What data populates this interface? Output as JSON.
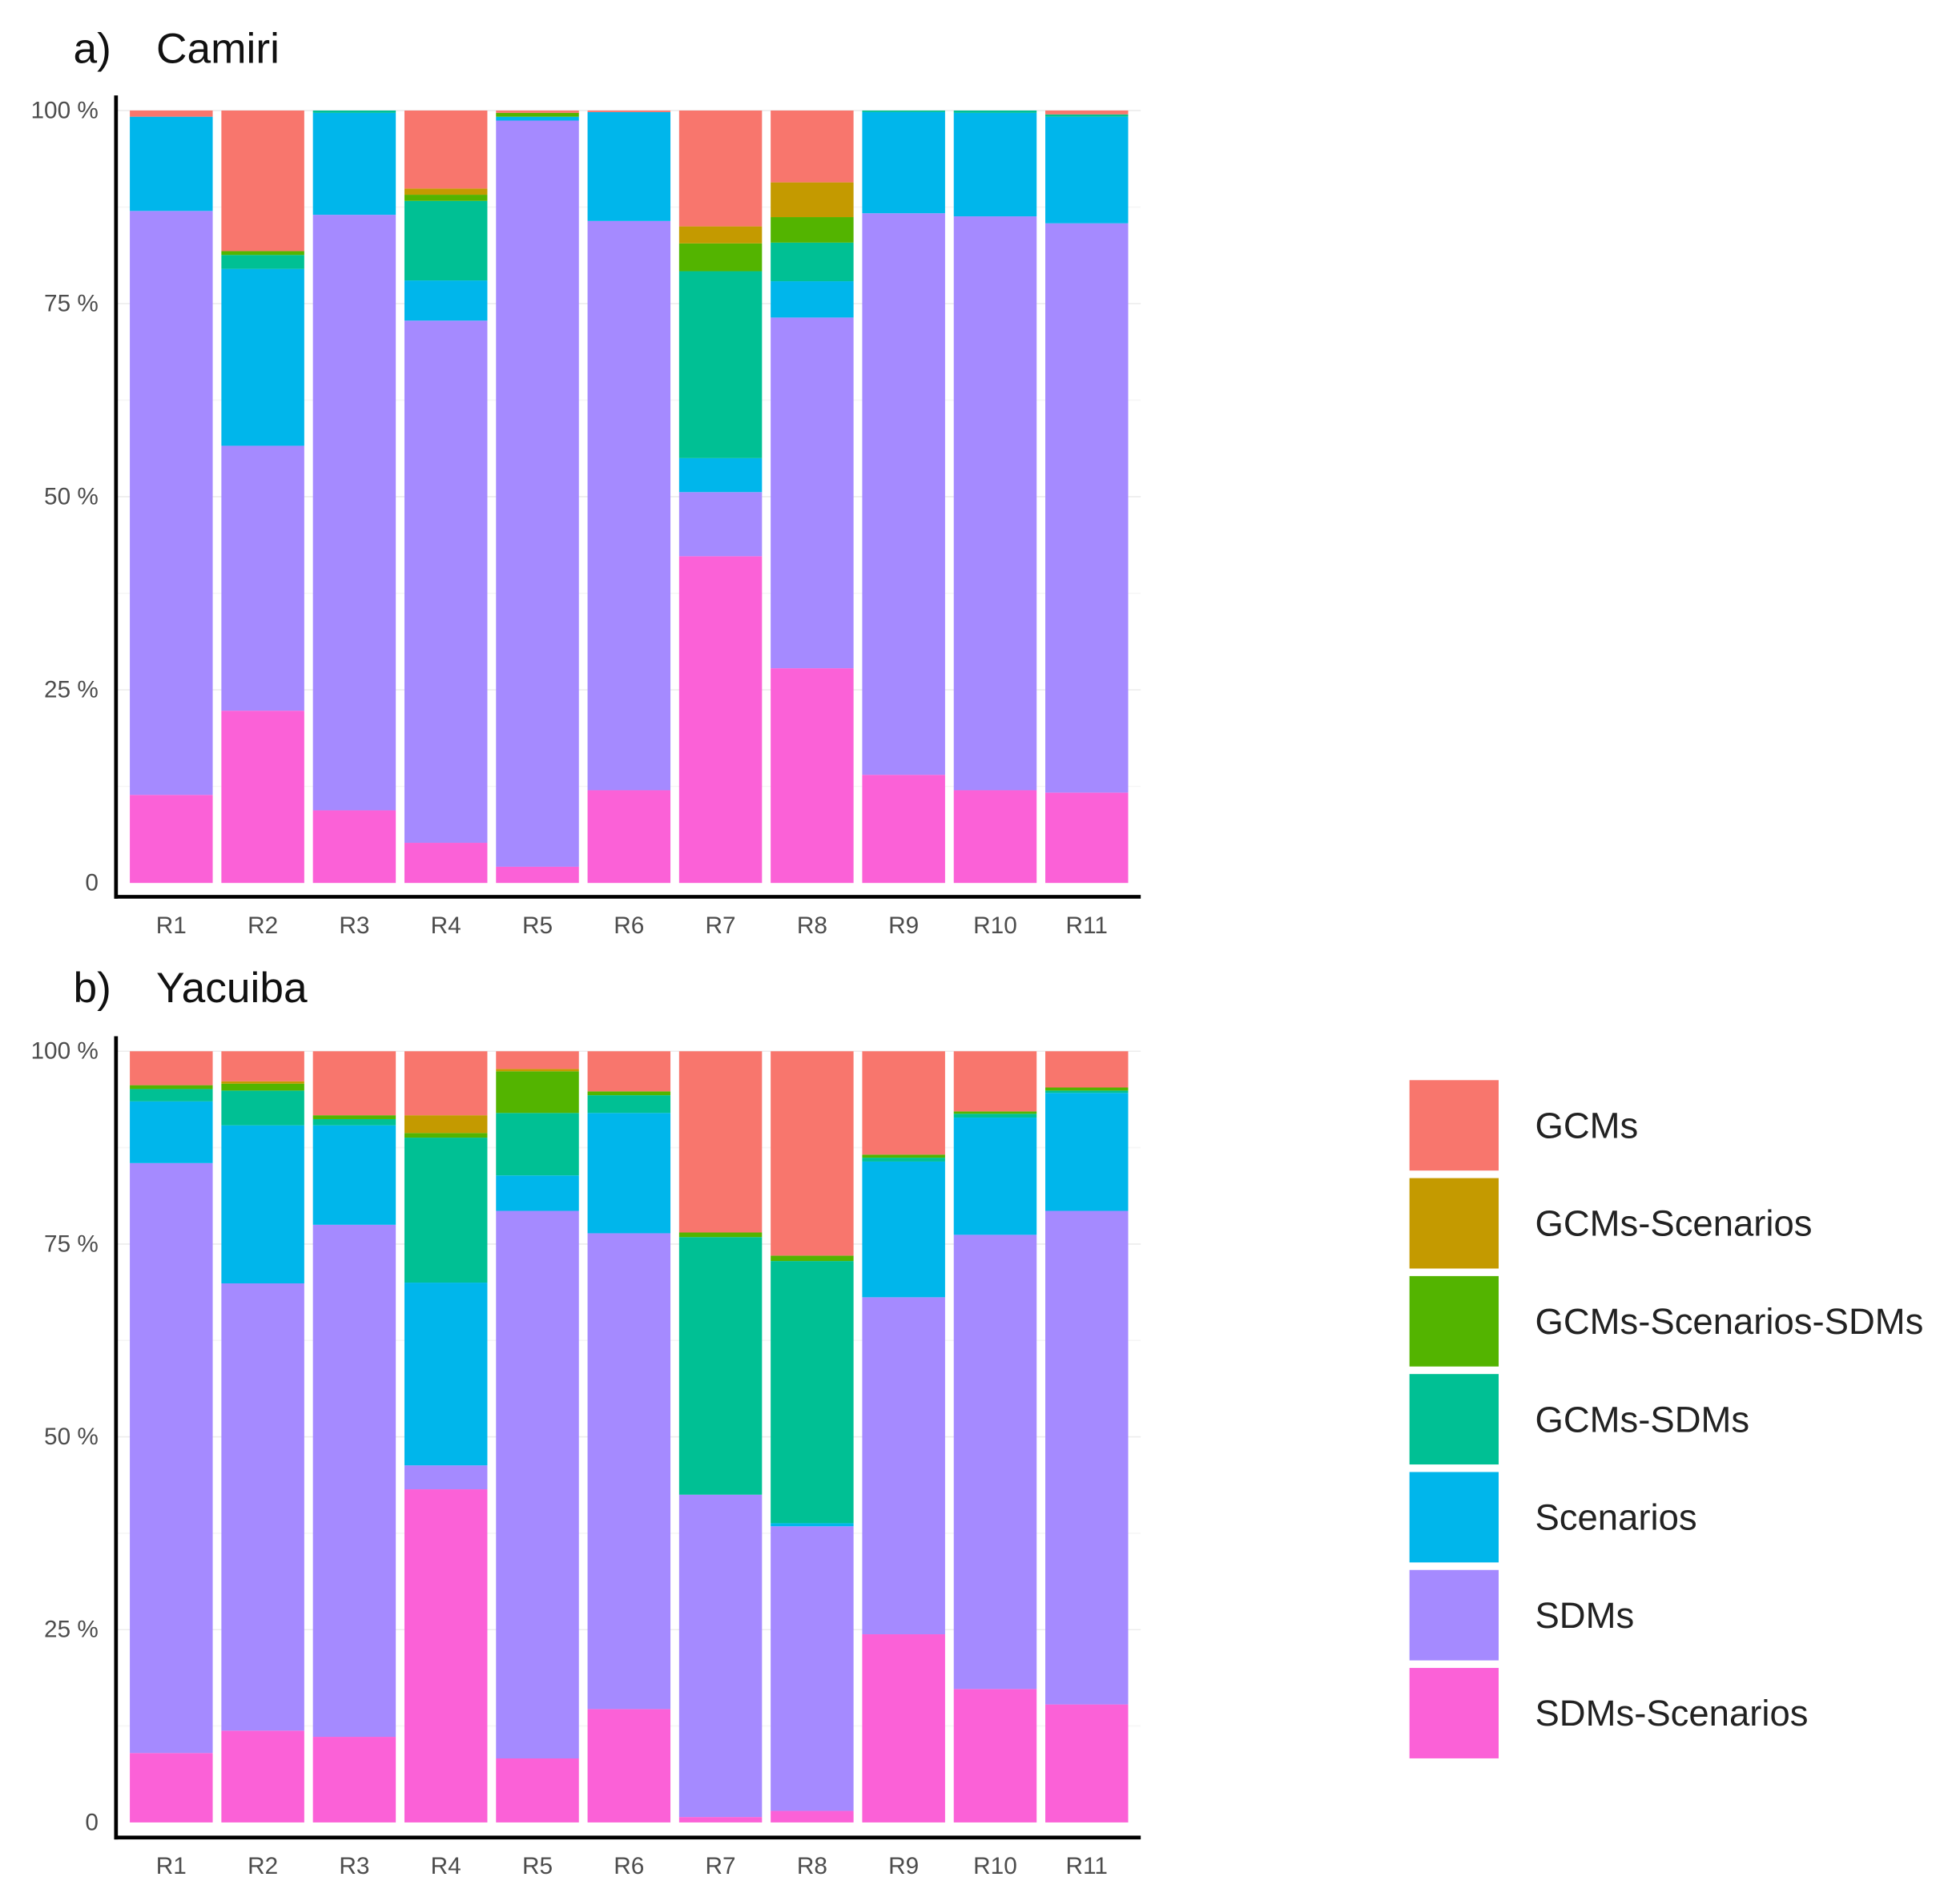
{
  "chart_data": [
    {
      "type": "bar",
      "stacked": true,
      "panel_label": "a)",
      "title": "Camiri",
      "xlabel": "",
      "ylabel": "",
      "ylim": [
        0,
        100
      ],
      "yticks": [
        "0",
        "25 %",
        "50 %",
        "75 %",
        "100 %"
      ],
      "grid": true,
      "categories": [
        "R1",
        "R2",
        "R3",
        "R4",
        "R5",
        "R6",
        "R7",
        "R8",
        "R9",
        "R10",
        "R11"
      ],
      "series": [
        {
          "name": "SDMs-Scenarios",
          "values": [
            11.4,
            22.3,
            9.4,
            5.2,
            2.1,
            12.0,
            42.3,
            27.8,
            14.0,
            12.0,
            11.7
          ]
        },
        {
          "name": "SDMs",
          "values": [
            75.6,
            34.3,
            77.1,
            67.6,
            96.6,
            73.7,
            8.3,
            45.4,
            72.7,
            74.3,
            73.7
          ]
        },
        {
          "name": "Scenarios",
          "values": [
            12.2,
            22.9,
            13.2,
            5.2,
            0.5,
            14.1,
            4.4,
            4.7,
            13.1,
            13.4,
            13.8
          ]
        },
        {
          "name": "GCMs-SDMs",
          "values": [
            0.0,
            1.8,
            0.3,
            10.3,
            0.0,
            0.0,
            24.2,
            5.0,
            0.2,
            0.3,
            0.3
          ]
        },
        {
          "name": "GCMs-Scenarios-SDMs",
          "values": [
            0.0,
            0.5,
            0.0,
            0.8,
            0.5,
            0.0,
            3.6,
            3.3,
            0.0,
            0.0,
            0.0
          ]
        },
        {
          "name": "GCMs-Scenarios",
          "values": [
            0.0,
            0.0,
            0.0,
            0.8,
            0.0,
            0.0,
            2.2,
            4.5,
            0.0,
            0.0,
            0.0
          ]
        },
        {
          "name": "GCMs",
          "values": [
            0.8,
            18.2,
            0.0,
            10.1,
            0.3,
            0.2,
            15.0,
            9.3,
            0.0,
            0.0,
            0.5
          ]
        }
      ]
    },
    {
      "type": "bar",
      "stacked": true,
      "panel_label": "b)",
      "title": "Yacuiba",
      "xlabel": "",
      "ylabel": "",
      "ylim": [
        0,
        100
      ],
      "yticks": [
        "0",
        "25 %",
        "50 %",
        "75 %",
        "100 %"
      ],
      "grid": true,
      "categories": [
        "R1",
        "R2",
        "R3",
        "R4",
        "R5",
        "R6",
        "R7",
        "R8",
        "R9",
        "R10",
        "R11"
      ],
      "series": [
        {
          "name": "SDMs-Scenarios",
          "values": [
            9.0,
            11.9,
            11.1,
            43.2,
            8.3,
            14.7,
            0.7,
            1.5,
            24.4,
            17.3,
            15.3
          ]
        },
        {
          "name": "SDMs",
          "values": [
            76.5,
            58.0,
            66.4,
            3.1,
            71.0,
            61.7,
            41.8,
            36.9,
            43.7,
            58.9,
            64.0
          ]
        },
        {
          "name": "Scenarios",
          "values": [
            8.0,
            20.5,
            12.9,
            23.7,
            4.6,
            15.6,
            0.0,
            0.4,
            17.6,
            15.2,
            15.3
          ]
        },
        {
          "name": "GCMs-SDMs",
          "values": [
            1.6,
            4.5,
            0.8,
            18.8,
            8.1,
            2.3,
            33.4,
            34.0,
            0.5,
            0.5,
            0.3
          ]
        },
        {
          "name": "GCMs-Scenarios-SDMs",
          "values": [
            0.5,
            0.9,
            0.5,
            0.6,
            5.4,
            0.5,
            0.6,
            0.7,
            0.4,
            0.3,
            0.4
          ]
        },
        {
          "name": "GCMs-Scenarios",
          "values": [
            0.0,
            0.3,
            0.0,
            2.3,
            0.3,
            0.0,
            0.0,
            0.0,
            0.0,
            0.0,
            0.0
          ]
        },
        {
          "name": "GCMs",
          "values": [
            4.4,
            3.9,
            8.3,
            8.3,
            2.3,
            5.2,
            23.5,
            26.5,
            13.4,
            7.8,
            4.7
          ]
        }
      ]
    }
  ],
  "legend": {
    "placement": "right",
    "items": [
      {
        "label": "GCMs",
        "color": "#F8766D"
      },
      {
        "label": "GCMs-Scenarios",
        "color": "#C49A00"
      },
      {
        "label": "GCMs-Scenarios-SDMs",
        "color": "#53B400"
      },
      {
        "label": "GCMs-SDMs",
        "color": "#00C094"
      },
      {
        "label": "Scenarios",
        "color": "#00B6EB"
      },
      {
        "label": "SDMs",
        "color": "#A58AFF"
      },
      {
        "label": "SDMs-Scenarios",
        "color": "#FB61D7"
      }
    ]
  }
}
